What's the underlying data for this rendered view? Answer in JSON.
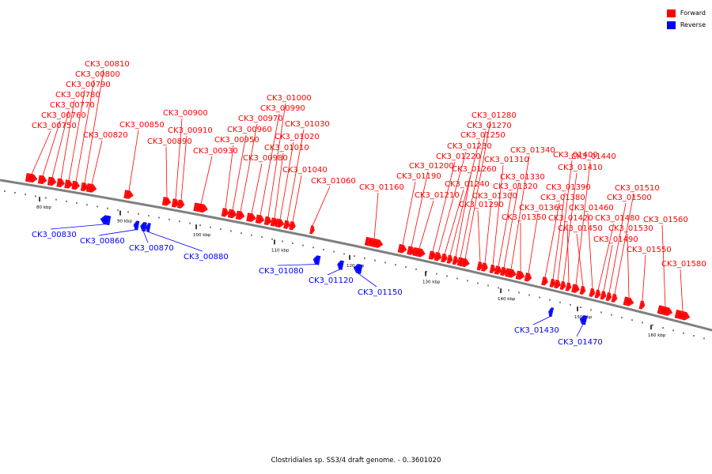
{
  "legend": [
    {
      "label": "Forward",
      "color": "#ff0000"
    },
    {
      "label": "Reverse",
      "color": "#0000ff"
    }
  ],
  "caption": "Clostridiales sp. SS3/4 draft genome. - 0..3601020",
  "colors": {
    "forward": "#ff0000",
    "reverse": "#0000ff",
    "backbone": "#808080"
  },
  "scale": [
    {
      "label": "80 kbp"
    },
    {
      "label": "90 kbp"
    },
    {
      "label": "100 kbp"
    },
    {
      "label": "110 kbp"
    },
    {
      "label": "120 kbp"
    },
    {
      "label": "130 kbp"
    },
    {
      "label": "140 kbp"
    },
    {
      "label": "150 kbp"
    },
    {
      "label": "160 kbp"
    }
  ],
  "genes": [
    {
      "locus": "CK3_00750",
      "strand": "forward"
    },
    {
      "locus": "CK3_00760",
      "strand": "forward"
    },
    {
      "locus": "CK3_00770",
      "strand": "forward"
    },
    {
      "locus": "CK3_00780",
      "strand": "forward"
    },
    {
      "locus": "CK3_00790",
      "strand": "forward"
    },
    {
      "locus": "CK3_00800",
      "strand": "forward"
    },
    {
      "locus": "CK3_00810",
      "strand": "forward"
    },
    {
      "locus": "CK3_00820",
      "strand": "forward"
    },
    {
      "locus": "CK3_00830",
      "strand": "reverse"
    },
    {
      "locus": "CK3_00850",
      "strand": "forward"
    },
    {
      "locus": "CK3_00860",
      "strand": "reverse"
    },
    {
      "locus": "CK3_00870",
      "strand": "reverse"
    },
    {
      "locus": "CK3_00880",
      "strand": "reverse"
    },
    {
      "locus": "CK3_00890",
      "strand": "forward"
    },
    {
      "locus": "CK3_00900",
      "strand": "forward"
    },
    {
      "locus": "CK3_00910",
      "strand": "forward"
    },
    {
      "locus": "CK3_00930",
      "strand": "forward"
    },
    {
      "locus": "CK3_00950",
      "strand": "forward"
    },
    {
      "locus": "CK3_00960",
      "strand": "forward"
    },
    {
      "locus": "CK3_00970",
      "strand": "forward"
    },
    {
      "locus": "CK3_00980",
      "strand": "forward"
    },
    {
      "locus": "CK3_00990",
      "strand": "forward"
    },
    {
      "locus": "CK3_01000",
      "strand": "forward"
    },
    {
      "locus": "CK3_01010",
      "strand": "forward"
    },
    {
      "locus": "CK3_01020",
      "strand": "forward"
    },
    {
      "locus": "CK3_01030",
      "strand": "forward"
    },
    {
      "locus": "CK3_01040",
      "strand": "forward"
    },
    {
      "locus": "CK3_01060",
      "strand": "forward"
    },
    {
      "locus": "CK3_01080",
      "strand": "reverse"
    },
    {
      "locus": "CK3_01120",
      "strand": "reverse"
    },
    {
      "locus": "CK3_01150",
      "strand": "reverse"
    },
    {
      "locus": "CK3_01160",
      "strand": "forward"
    },
    {
      "locus": "CK3_01190",
      "strand": "forward"
    },
    {
      "locus": "CK3_01200",
      "strand": "forward"
    },
    {
      "locus": "CK3_01210",
      "strand": "forward"
    },
    {
      "locus": "CK3_01220",
      "strand": "forward"
    },
    {
      "locus": "CK3_01230",
      "strand": "forward"
    },
    {
      "locus": "CK3_01240",
      "strand": "forward"
    },
    {
      "locus": "CK3_01250",
      "strand": "forward"
    },
    {
      "locus": "CK3_01260",
      "strand": "forward"
    },
    {
      "locus": "CK3_01270",
      "strand": "forward"
    },
    {
      "locus": "CK3_01280",
      "strand": "forward"
    },
    {
      "locus": "CK3_01290",
      "strand": "forward"
    },
    {
      "locus": "CK3_01300",
      "strand": "forward"
    },
    {
      "locus": "CK3_01310",
      "strand": "forward"
    },
    {
      "locus": "CK3_01320",
      "strand": "forward"
    },
    {
      "locus": "CK3_01330",
      "strand": "forward"
    },
    {
      "locus": "CK3_01340",
      "strand": "forward"
    },
    {
      "locus": "CK3_01350",
      "strand": "forward"
    },
    {
      "locus": "CK3_01360",
      "strand": "forward"
    },
    {
      "locus": "CK3_01380",
      "strand": "forward"
    },
    {
      "locus": "CK3_01390",
      "strand": "forward"
    },
    {
      "locus": "CK3_01400",
      "strand": "forward"
    },
    {
      "locus": "CK3_01410",
      "strand": "forward"
    },
    {
      "locus": "CK3_01420",
      "strand": "forward"
    },
    {
      "locus": "CK3_01430",
      "strand": "reverse"
    },
    {
      "locus": "CK3_01440",
      "strand": "forward"
    },
    {
      "locus": "CK3_01450",
      "strand": "forward"
    },
    {
      "locus": "CK3_01460",
      "strand": "forward"
    },
    {
      "locus": "CK3_01470",
      "strand": "reverse"
    },
    {
      "locus": "CK3_01480",
      "strand": "forward"
    },
    {
      "locus": "CK3_01490",
      "strand": "forward"
    },
    {
      "locus": "CK3_01500",
      "strand": "forward"
    },
    {
      "locus": "CK3_01510",
      "strand": "forward"
    },
    {
      "locus": "CK3_01530",
      "strand": "forward"
    },
    {
      "locus": "CK3_01550",
      "strand": "forward"
    },
    {
      "locus": "CK3_01560",
      "strand": "forward"
    },
    {
      "locus": "CK3_01580",
      "strand": "forward"
    }
  ]
}
